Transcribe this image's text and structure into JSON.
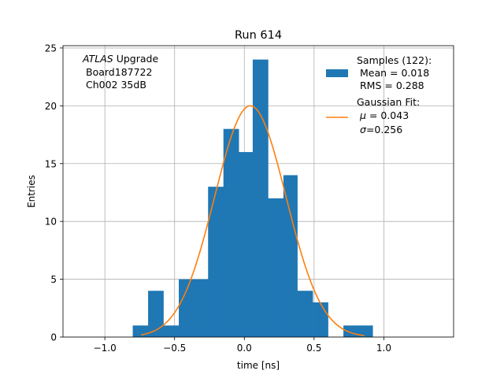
{
  "chart_data": {
    "type": "bar",
    "title": "Run 614",
    "xlabel": "time [ns]",
    "ylabel": "Entries",
    "xlim": [
      -1.3,
      1.5
    ],
    "ylim": [
      0,
      25.2
    ],
    "grid": true,
    "xticks": [
      -1.0,
      -0.5,
      0.0,
      0.5,
      1.0
    ],
    "xtick_labels": [
      "−1.0",
      "−0.5",
      "0.0",
      "0.5",
      "1.0"
    ],
    "yticks": [
      0,
      5,
      10,
      15,
      20,
      25
    ],
    "ytick_labels": [
      "0",
      "5",
      "10",
      "15",
      "20",
      "25"
    ],
    "annotation": {
      "atlas": "ATLAS",
      "upgrade": " Upgrade",
      "board": "Board187722",
      "channel": "Ch002 35dB"
    },
    "legend": {
      "placement": "top-right",
      "samples": {
        "line1": "Samples (122):",
        "line2": "Mean = 0.018",
        "line3": "RMS = 0.288",
        "color": "#1f77b4"
      },
      "fit": {
        "line1": "Gaussian Fit:",
        "mu_symbol": "μ",
        "mu_text": " = 0.043",
        "sigma_symbol": "σ",
        "sigma_text": "=0.256",
        "color": "#ff7f0e"
      }
    },
    "histogram": {
      "color": "#1f77b4",
      "bin_edges": [
        -0.8,
        -0.69,
        -0.58,
        -0.47,
        -0.37,
        -0.26,
        -0.15,
        -0.04,
        0.06,
        0.17,
        0.28,
        0.38,
        0.49,
        0.6,
        0.71,
        0.81,
        0.92
      ],
      "counts": [
        1,
        4,
        1,
        5,
        5,
        13,
        18,
        16,
        24,
        12,
        14,
        4,
        3,
        0,
        1,
        1
      ]
    },
    "gaussian_fit": {
      "color": "#ff7f0e",
      "mu": 0.043,
      "sigma": 0.256,
      "amplitude": 20,
      "x_range": [
        -0.74,
        0.86
      ]
    }
  }
}
